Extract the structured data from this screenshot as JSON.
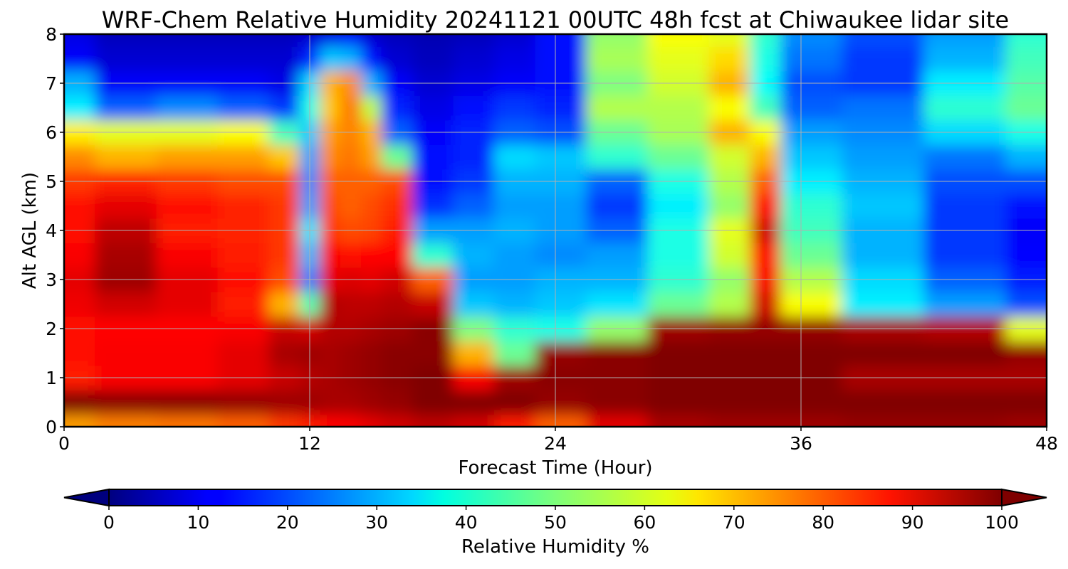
{
  "chart_data": {
    "type": "heatmap",
    "title": "WRF-Chem Relative Humidity 20241121 00UTC 48h fcst at Chiwaukee lidar site",
    "xlabel": "Forecast Time (Hour)",
    "ylabel": "Alt AGL (km)",
    "xlim": [
      0,
      48
    ],
    "ylim": [
      0,
      8
    ],
    "x_ticks": [
      "0",
      "12",
      "24",
      "36",
      "48"
    ],
    "y_ticks": [
      "0",
      "1",
      "2",
      "3",
      "4",
      "5",
      "6",
      "7",
      "8"
    ],
    "grid": true,
    "colorbar": {
      "label": "Relative Humidity %",
      "ticks": [
        "0",
        "10",
        "20",
        "30",
        "40",
        "50",
        "60",
        "70",
        "80",
        "90",
        "100"
      ],
      "range": [
        0,
        100
      ],
      "extend": "both",
      "colormap": "jet",
      "orientation": "horizontal"
    },
    "x": [
      0,
      3,
      6,
      9,
      11,
      12,
      13,
      14,
      15,
      16,
      18,
      20,
      22,
      24,
      27,
      30,
      33,
      34,
      36,
      40,
      44,
      48
    ],
    "y": [
      0,
      0.5,
      1,
      1.5,
      2,
      2.5,
      3,
      3.5,
      4,
      4.5,
      5,
      5.5,
      6,
      6.5,
      7,
      7.5,
      8
    ],
    "z": [
      [
        72,
        75,
        76,
        78,
        82,
        85,
        87,
        88,
        90,
        92,
        94,
        92,
        85,
        78,
        90,
        96,
        97,
        97,
        97,
        98,
        98,
        97
      ],
      [
        100,
        99,
        99,
        98,
        97,
        97,
        96,
        96,
        97,
        98,
        100,
        100,
        100,
        98,
        99,
        100,
        100,
        100,
        100,
        100,
        100,
        100
      ],
      [
        85,
        88,
        88,
        90,
        93,
        95,
        96,
        97,
        98,
        99,
        100,
        88,
        97,
        99,
        99,
        100,
        100,
        100,
        100,
        96,
        96,
        96
      ],
      [
        86,
        88,
        88,
        90,
        96,
        97,
        96,
        97,
        98,
        99,
        99,
        70,
        48,
        98,
        99,
        100,
        100,
        100,
        100,
        100,
        100,
        98
      ],
      [
        86,
        87,
        87,
        88,
        93,
        92,
        95,
        95,
        96,
        97,
        99,
        50,
        42,
        40,
        52,
        97,
        98,
        98,
        98,
        96,
        95,
        60
      ],
      [
        89,
        92,
        90,
        85,
        70,
        45,
        95,
        94,
        94,
        95,
        93,
        32,
        30,
        32,
        35,
        48,
        55,
        92,
        62,
        36,
        28,
        20
      ],
      [
        90,
        97,
        90,
        86,
        80,
        25,
        90,
        91,
        90,
        92,
        78,
        28,
        28,
        30,
        30,
        42,
        52,
        88,
        55,
        34,
        22,
        15
      ],
      [
        88,
        96,
        88,
        85,
        82,
        30,
        88,
        86,
        87,
        87,
        42,
        30,
        28,
        26,
        28,
        40,
        58,
        86,
        48,
        30,
        18,
        13
      ],
      [
        86,
        94,
        85,
        84,
        82,
        35,
        82,
        80,
        81,
        85,
        28,
        28,
        30,
        28,
        22,
        40,
        60,
        92,
        44,
        30,
        18,
        12
      ],
      [
        86,
        90,
        86,
        84,
        82,
        28,
        80,
        78,
        80,
        83,
        17,
        22,
        28,
        28,
        18,
        36,
        52,
        86,
        42,
        32,
        18,
        14
      ],
      [
        82,
        84,
        82,
        80,
        80,
        26,
        78,
        78,
        78,
        80,
        14,
        18,
        30,
        30,
        22,
        40,
        55,
        78,
        36,
        30,
        20,
        20
      ],
      [
        74,
        70,
        72,
        72,
        68,
        28,
        74,
        76,
        72,
        48,
        14,
        16,
        34,
        32,
        42,
        48,
        58,
        70,
        32,
        28,
        24,
        30
      ],
      [
        64,
        60,
        60,
        62,
        44,
        32,
        72,
        75,
        70,
        22,
        12,
        16,
        22,
        20,
        48,
        54,
        70,
        62,
        28,
        26,
        34,
        40
      ],
      [
        36,
        22,
        26,
        22,
        18,
        40,
        68,
        76,
        56,
        16,
        10,
        14,
        18,
        16,
        55,
        55,
        62,
        44,
        22,
        24,
        42,
        48
      ],
      [
        30,
        12,
        12,
        12,
        10,
        34,
        70,
        74,
        30,
        12,
        8,
        10,
        12,
        14,
        50,
        58,
        70,
        38,
        20,
        18,
        36,
        46
      ],
      [
        12,
        8,
        8,
        8,
        8,
        16,
        32,
        30,
        14,
        8,
        6,
        8,
        10,
        14,
        54,
        60,
        66,
        40,
        24,
        18,
        30,
        44
      ],
      [
        10,
        6,
        6,
        6,
        6,
        8,
        10,
        12,
        8,
        6,
        5,
        6,
        8,
        14,
        52,
        62,
        60,
        42,
        26,
        20,
        28,
        42
      ]
    ]
  }
}
